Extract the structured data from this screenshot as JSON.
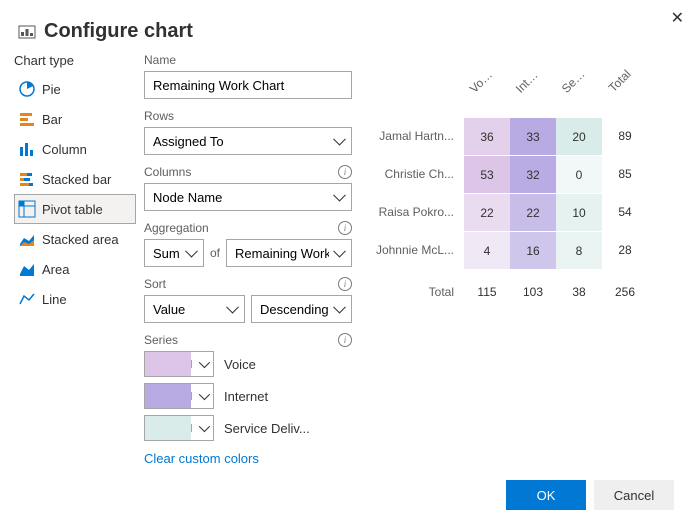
{
  "dialog": {
    "title": "Configure chart",
    "ok_label": "OK",
    "cancel_label": "Cancel"
  },
  "chartTypes": {
    "label": "Chart type",
    "items": [
      {
        "label": "Pie",
        "selected": false
      },
      {
        "label": "Bar",
        "selected": false
      },
      {
        "label": "Column",
        "selected": false
      },
      {
        "label": "Stacked bar",
        "selected": false
      },
      {
        "label": "Pivot table",
        "selected": true
      },
      {
        "label": "Stacked area",
        "selected": false
      },
      {
        "label": "Area",
        "selected": false
      },
      {
        "label": "Line",
        "selected": false
      }
    ]
  },
  "form": {
    "name_label": "Name",
    "name_value": "Remaining Work Chart",
    "rows_label": "Rows",
    "rows_value": "Assigned To",
    "columns_label": "Columns",
    "columns_value": "Node Name",
    "aggregation_label": "Aggregation",
    "aggregation_func": "Sum",
    "aggregation_of": "of",
    "aggregation_field": "Remaining Work",
    "sort_label": "Sort",
    "sort_by": "Value",
    "sort_dir": "Descending",
    "series_label": "Series",
    "series": [
      {
        "color": "#dcc5e6",
        "label": "Voice"
      },
      {
        "color": "#b8aae3",
        "label": "Internet"
      },
      {
        "color": "#d9ece9",
        "label": "Service Deliv..."
      }
    ],
    "clear_colors_label": "Clear custom colors"
  },
  "pivot": {
    "col_headers": [
      "Voice",
      "Internet",
      "Service Del...",
      "Total"
    ],
    "rows": [
      {
        "label": "Jamal Hartn...",
        "cells": [
          36,
          33,
          20
        ],
        "total": 89
      },
      {
        "label": "Christie Ch...",
        "cells": [
          53,
          32,
          0
        ],
        "total": 85
      },
      {
        "label": "Raisa Pokro...",
        "cells": [
          22,
          22,
          10
        ],
        "total": 54
      },
      {
        "label": "Johnnie McL...",
        "cells": [
          4,
          16,
          8
        ],
        "total": 28
      }
    ],
    "totals_label": "Total",
    "col_totals": [
      115,
      103,
      38
    ],
    "grand_total": 256,
    "col_colors": [
      "#dcc5e6",
      "#b8aae3",
      "#d9ece9"
    ],
    "intensity_scale": {
      "min_alpha": 0.35,
      "max_alpha": 1.0
    }
  }
}
